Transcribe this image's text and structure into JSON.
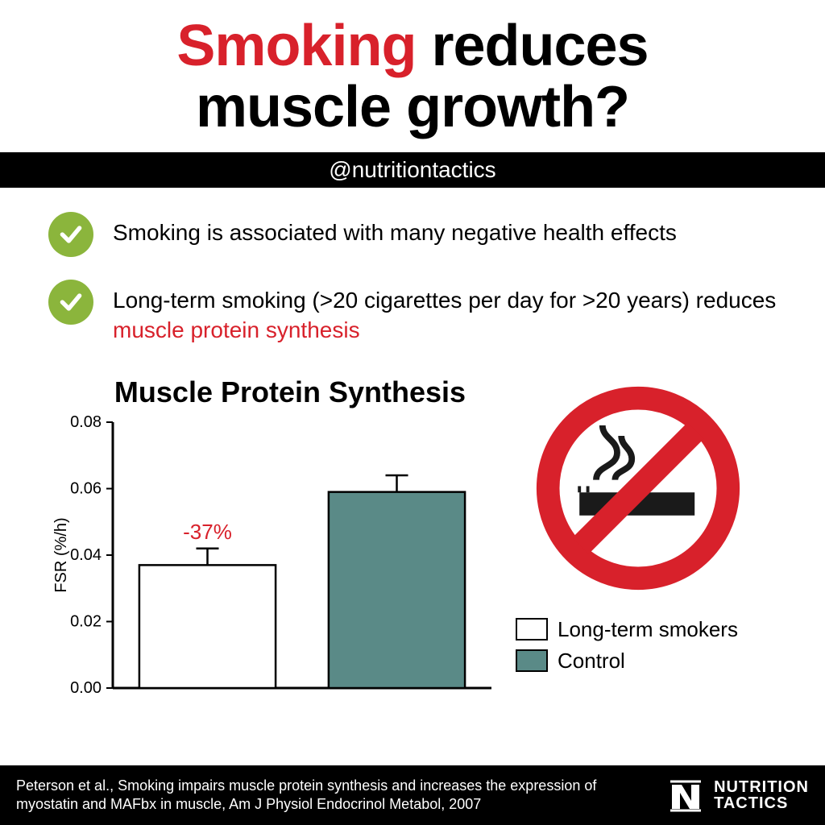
{
  "title": {
    "word_highlight": "Smoking",
    "rest_line1": " reduces",
    "line2": "muscle growth?",
    "highlight_color": "#d8212b",
    "text_color": "#000000",
    "fontsize": 72
  },
  "handle": "@nutritiontactics",
  "bullets": [
    {
      "text": "Smoking is associated with many negative health effects",
      "highlight_phrase": null
    },
    {
      "text_before": "Long-term smoking (>20 cigarettes per day for >20 years) reduces ",
      "highlight_phrase": "muscle protein synthesis",
      "text_after": ""
    }
  ],
  "bullet_check_bg": "#8bb53c",
  "bullet_check_stroke": "#ffffff",
  "chart": {
    "type": "bar",
    "title": "Muscle Protein Synthesis",
    "ylabel": "FSR (%/h)",
    "ylim": [
      0.0,
      0.08
    ],
    "yticks": [
      0.0,
      0.02,
      0.04,
      0.06,
      0.08
    ],
    "ytick_labels": [
      "0.00",
      "0.02",
      "0.04",
      "0.06",
      "0.08"
    ],
    "bars": [
      {
        "label": "Long-term smokers",
        "value": 0.037,
        "err": 0.005,
        "fill": "#ffffff",
        "stroke": "#000000"
      },
      {
        "label": "Control",
        "value": 0.059,
        "err": 0.005,
        "fill": "#5a8a87",
        "stroke": "#000000"
      }
    ],
    "annotation": {
      "text": "-37%",
      "color": "#d8212b",
      "fontsize": 26
    },
    "axis_color": "#000000",
    "tick_fontsize": 20,
    "label_fontsize": 20,
    "bar_width_ratio": 0.72
  },
  "legend": [
    {
      "swatch": "#ffffff",
      "label": "Long-term smokers"
    },
    {
      "swatch": "#5a8a87",
      "label": "Control"
    }
  ],
  "nosmoking_colors": {
    "ring": "#d8212b",
    "cig": "#1a1a1a"
  },
  "citation": "Peterson et al., Smoking impairs muscle protein synthesis and increases the expression of myostatin and MAFbx in muscle, Am J Physiol Endocrinol Metabol, 2007",
  "brand": {
    "line1": "NUTRITION",
    "line2": "TACTICS"
  }
}
